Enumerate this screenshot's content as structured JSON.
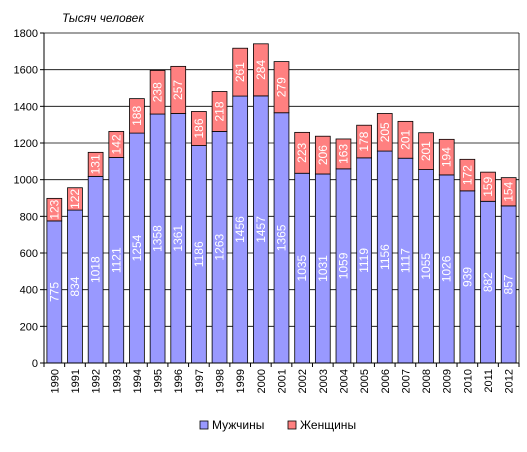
{
  "chart_data": {
    "type": "bar",
    "stacked": true,
    "ylabel": "Тысяч человек",
    "ylim": [
      0,
      1800
    ],
    "yticks": [
      0,
      200,
      400,
      600,
      800,
      1000,
      1200,
      1400,
      1600,
      1800
    ],
    "grid": true,
    "legend_position": "bottom",
    "categories": [
      "1990",
      "1991",
      "1992",
      "1993",
      "1994",
      "1995",
      "1996",
      "1997",
      "1998",
      "1999",
      "2000",
      "2001",
      "2002",
      "2003",
      "2004",
      "2005",
      "2006",
      "2007",
      "2008",
      "2009",
      "2010",
      "2011",
      "2012"
    ],
    "series": [
      {
        "name": "Мужчины",
        "color": "#9999ff",
        "values": [
          775,
          834,
          1018,
          1121,
          1254,
          1358,
          1361,
          1186,
          1263,
          1456,
          1457,
          1365,
          1035,
          1031,
          1059,
          1119,
          1156,
          1117,
          1055,
          1026,
          939,
          882,
          857
        ]
      },
      {
        "name": "Женщины",
        "color": "#ff8080",
        "values": [
          123,
          122,
          131,
          142,
          188,
          238,
          257,
          186,
          218,
          261,
          284,
          279,
          223,
          206,
          163,
          178,
          205,
          201,
          201,
          194,
          172,
          159,
          154
        ]
      }
    ]
  }
}
